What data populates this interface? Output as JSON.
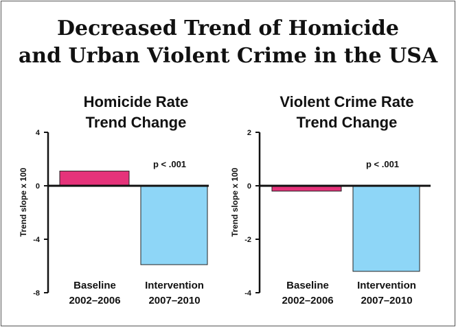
{
  "title_lines": [
    "Decreased Trend of Homicide",
    "and Urban Violent Crime in the USA"
  ],
  "chart_data": [
    {
      "type": "bar",
      "title_lines": [
        "Homicide Rate",
        "Trend Change"
      ],
      "ylabel": "Trend slope x 100",
      "ylim": [
        -8,
        4
      ],
      "yticks": [
        4,
        0,
        -4,
        -8
      ],
      "ytick_labels": [
        "4",
        "0",
        "-4",
        "-8"
      ],
      "categories": [
        {
          "line1": "Baseline",
          "line2": "2002–2006"
        },
        {
          "line1": "Intervention",
          "line2": "2007–2010"
        }
      ],
      "values": [
        1.1,
        -5.9
      ],
      "colors": [
        "#e5337a",
        "#8ed6f7"
      ],
      "annotation": "p < .001"
    },
    {
      "type": "bar",
      "title_lines": [
        "Violent Crime Rate",
        "Trend Change"
      ],
      "ylabel": "Trend slope x 100",
      "ylim": [
        -4,
        2
      ],
      "yticks": [
        2,
        0,
        -2,
        -4
      ],
      "ytick_labels": [
        "2",
        "0",
        "-2",
        "-4"
      ],
      "categories": [
        {
          "line1": "Baseline",
          "line2": "2002–2006"
        },
        {
          "line1": "Intervention",
          "line2": "2007–2010"
        }
      ],
      "values": [
        -0.2,
        -3.2
      ],
      "colors": [
        "#e5337a",
        "#8ed6f7"
      ],
      "annotation": "p < .001"
    }
  ]
}
